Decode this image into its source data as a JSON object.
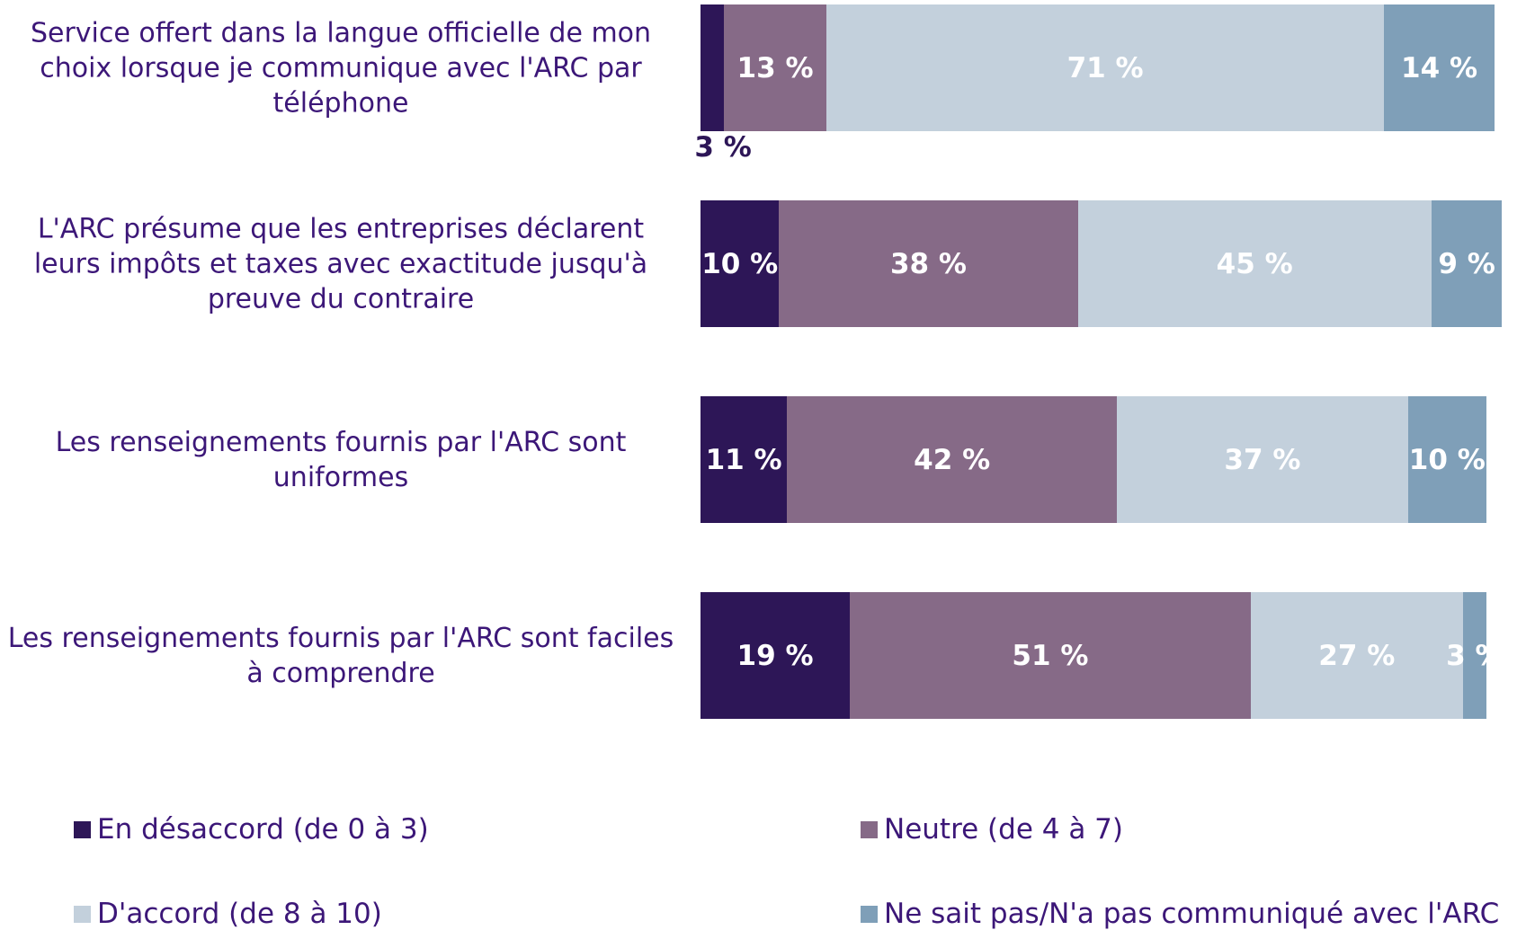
{
  "chart_data": {
    "type": "stacked_bar_horizontal",
    "categories": [
      "Service offert dans la langue officielle de mon choix lorsque je communique avec l'ARC par téléphone",
      "L'ARC présume que les entreprises déclarent leurs impôts et taxes avec exactitude jusqu'à preuve du contraire",
      "Les renseignements fournis par l'ARC sont uniformes",
      "Les renseignements fournis par l'ARC sont faciles à comprendre"
    ],
    "xlim": [
      0,
      100
    ],
    "series": [
      {
        "name": "En désaccord (de 0 à 3)",
        "color": "#2d1657",
        "values": [
          3,
          10,
          11,
          19
        ],
        "value_labels": [
          "3 %",
          "10 %",
          "11 %",
          "19 %"
        ]
      },
      {
        "name": "Neutre (de 4 à 7)",
        "color": "#866a87",
        "values": [
          13,
          38,
          42,
          51
        ],
        "value_labels": [
          "13 %",
          "38 %",
          "42 %",
          "51 %"
        ]
      },
      {
        "name": "D'accord (de 8 à 10)",
        "color": "#c3d0dc",
        "values": [
          71,
          45,
          37,
          27
        ],
        "value_labels": [
          "71 %",
          "45 %",
          "37 %",
          "27 %"
        ]
      },
      {
        "name": "Ne sait pas/N'a pas communiqué avec l'ARC",
        "color": "#7f9fb8",
        "values": [
          14,
          9,
          10,
          3
        ],
        "value_labels": [
          "14 %",
          "9 %",
          "10 %",
          "3 %"
        ]
      }
    ],
    "legend": "bottom"
  }
}
